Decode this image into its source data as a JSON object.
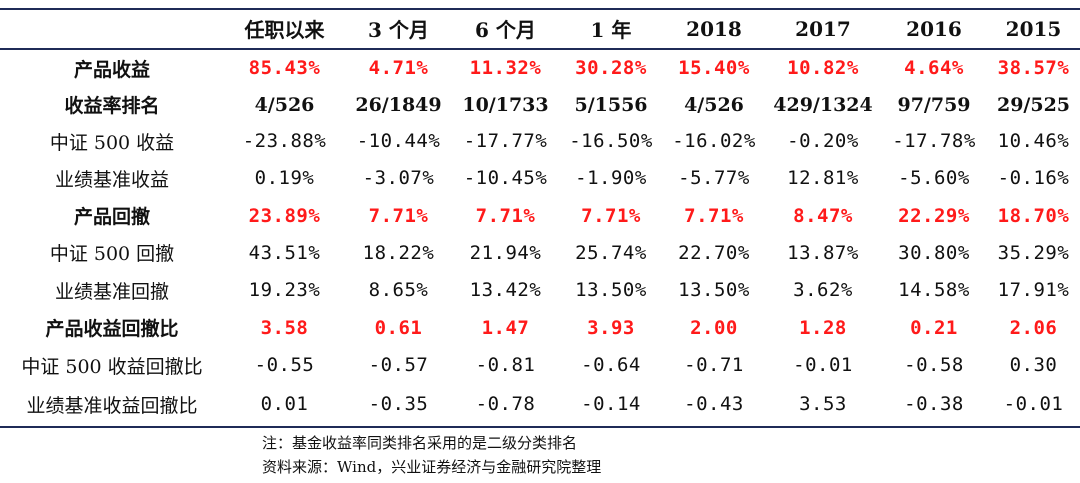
{
  "header": [
    "",
    "任职以来",
    "3 个月",
    "6 个月",
    "1 年",
    "2018",
    "2017",
    "2016",
    "2015"
  ],
  "rows": [
    {
      "label": "产品收益",
      "values": [
        "85.43%",
        "4.71%",
        "11.32%",
        "30.28%",
        "15.40%",
        "10.82%",
        "4.64%",
        "38.57%"
      ]
    },
    {
      "label": "收益率排名",
      "values": [
        "4/526",
        "26/1849",
        "10/1733",
        "5/1556",
        "4/526",
        "429/1324",
        "97/759",
        "29/525"
      ]
    },
    {
      "label": "中证 500 收益",
      "values": [
        "-23.88%",
        "-10.44%",
        "-17.77%",
        "-16.50%",
        "-16.02%",
        "-0.20%",
        "-17.78%",
        "10.46%"
      ]
    },
    {
      "label": "业绩基准收益",
      "values": [
        "0.19%",
        "-3.07%",
        "-10.45%",
        "-1.90%",
        "-5.77%",
        "12.81%",
        "-5.60%",
        "-0.16%"
      ]
    },
    {
      "label": "产品回撤",
      "values": [
        "23.89%",
        "7.71%",
        "7.71%",
        "7.71%",
        "7.71%",
        "8.47%",
        "22.29%",
        "18.70%"
      ]
    },
    {
      "label": "中证 500 回撤",
      "values": [
        "43.51%",
        "18.22%",
        "21.94%",
        "25.74%",
        "22.70%",
        "13.87%",
        "30.80%",
        "35.29%"
      ]
    },
    {
      "label": "业绩基准回撤",
      "values": [
        "19.23%",
        "8.65%",
        "13.42%",
        "13.50%",
        "13.50%",
        "3.62%",
        "14.58%",
        "17.91%"
      ]
    },
    {
      "label": "产品收益回撤比",
      "values": [
        "3.58",
        "0.61",
        "1.47",
        "3.93",
        "2.00",
        "1.28",
        "0.21",
        "2.06"
      ]
    },
    {
      "label": "中证 500 收益回撤比",
      "values": [
        "-0.55",
        "-0.57",
        "-0.81",
        "-0.64",
        "-0.71",
        "-0.01",
        "-0.58",
        "0.30"
      ]
    },
    {
      "label": "业绩基准收益回撤比",
      "values": [
        "0.01",
        "-0.35",
        "-0.78",
        "-0.14",
        "-0.43",
        "3.53",
        "-0.38",
        "-0.01"
      ]
    }
  ],
  "notes": {
    "note1": "注：基金收益率同类排名采用的是二级分类排名",
    "note2": "资料来源：Wind，兴业证券经济与金融研究院整理"
  },
  "colors": {
    "highlight": "#ff1a1a",
    "rule": "#1f2b57"
  }
}
